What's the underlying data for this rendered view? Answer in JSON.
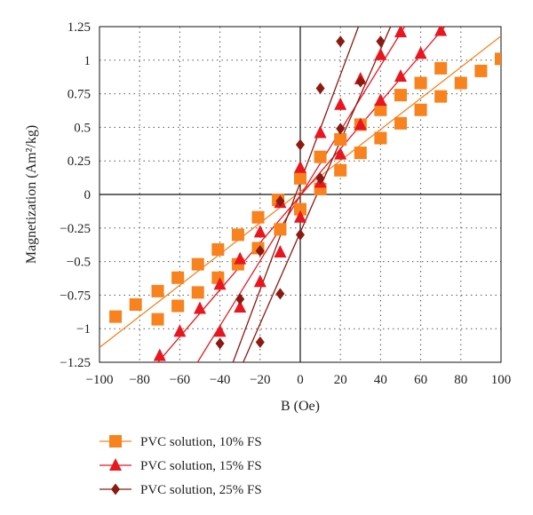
{
  "chart_data": {
    "type": "scatter",
    "xlabel": "B (Oe)",
    "ylabel": "Magnetization (Am²/kg)",
    "xlim": [
      -100,
      100
    ],
    "ylim": [
      -1.25,
      1.25
    ],
    "xticks": [
      -100,
      -80,
      -60,
      -40,
      -20,
      0,
      20,
      40,
      60,
      80,
      100
    ],
    "yticks": [
      -1.25,
      -1,
      -0.75,
      -0.5,
      -0.25,
      0,
      0.25,
      0.5,
      0.75,
      1,
      1.25
    ],
    "xtick_labels": [
      "−100",
      "−80",
      "−60",
      "−40",
      "−20",
      "0",
      "20",
      "40",
      "60",
      "80",
      "100"
    ],
    "ytick_labels": [
      "−1.25",
      "−1",
      "−0.75",
      "−0.5",
      "−0.25",
      "0",
      "0.25",
      "0.5",
      "0.75",
      "1",
      "1.25"
    ],
    "grid": "dotted",
    "legend_position": "bottom",
    "series": [
      {
        "name": "PVC solution, 10% FS",
        "color": "#F7821E",
        "marker": "square",
        "fit_lines": [
          {
            "x": [
              -100,
              100
            ],
            "y": [
              -1.14,
              1.18
            ]
          }
        ],
        "points": [
          {
            "x": -92,
            "y": -0.91
          },
          {
            "x": -82,
            "y": -0.82
          },
          {
            "x": -71,
            "y": -0.72
          },
          {
            "x": -61,
            "y": -0.62
          },
          {
            "x": -51,
            "y": -0.52
          },
          {
            "x": -41,
            "y": -0.41
          },
          {
            "x": -31,
            "y": -0.3
          },
          {
            "x": -21,
            "y": -0.17
          },
          {
            "x": -11,
            "y": -0.04
          },
          {
            "x": 0,
            "y": 0.12
          },
          {
            "x": 10,
            "y": 0.28
          },
          {
            "x": 20,
            "y": 0.41
          },
          {
            "x": 30,
            "y": 0.52
          },
          {
            "x": 40,
            "y": 0.63
          },
          {
            "x": 50,
            "y": 0.74
          },
          {
            "x": 60,
            "y": 0.83
          },
          {
            "x": 70,
            "y": 0.94
          },
          {
            "x": 80,
            "y": 0.83
          },
          {
            "x": 90,
            "y": 0.92
          },
          {
            "x": 100,
            "y": 1.01
          },
          {
            "x": -71,
            "y": -0.93
          },
          {
            "x": -61,
            "y": -0.83
          },
          {
            "x": -51,
            "y": -0.73
          },
          {
            "x": -41,
            "y": -0.62
          },
          {
            "x": -31,
            "y": -0.52
          },
          {
            "x": -21,
            "y": -0.4
          },
          {
            "x": -10,
            "y": -0.26
          },
          {
            "x": 0,
            "y": -0.11
          },
          {
            "x": 10,
            "y": 0.04
          },
          {
            "x": 20,
            "y": 0.18
          },
          {
            "x": 30,
            "y": 0.31
          },
          {
            "x": 40,
            "y": 0.42
          },
          {
            "x": 50,
            "y": 0.53
          },
          {
            "x": 60,
            "y": 0.63
          },
          {
            "x": 70,
            "y": 0.73
          }
        ]
      },
      {
        "name": "PVC solution, 15% FS",
        "color": "#E8171F",
        "marker": "triangle",
        "fit_lines": [
          {
            "x": [
              -72,
              72
            ],
            "y": [
              -1.27,
              1.25
            ]
          },
          {
            "x": [
              -52,
              52
            ],
            "y": [
              -1.27,
              1.25
            ]
          }
        ],
        "points": [
          {
            "x": -70,
            "y": -1.2
          },
          {
            "x": -60,
            "y": -1.02
          },
          {
            "x": -50,
            "y": -0.85
          },
          {
            "x": -40,
            "y": -0.67
          },
          {
            "x": -30,
            "y": -0.48
          },
          {
            "x": -20,
            "y": -0.28
          },
          {
            "x": -10,
            "y": -0.06
          },
          {
            "x": 0,
            "y": 0.2
          },
          {
            "x": 10,
            "y": 0.46
          },
          {
            "x": 20,
            "y": 0.67
          },
          {
            "x": 30,
            "y": 0.86
          },
          {
            "x": 40,
            "y": 1.04
          },
          {
            "x": 50,
            "y": 1.21
          },
          {
            "x": 60,
            "y": 1.05
          },
          {
            "x": 70,
            "y": 1.22
          },
          {
            "x": -40,
            "y": -1.02
          },
          {
            "x": -30,
            "y": -0.84
          },
          {
            "x": -20,
            "y": -0.65
          },
          {
            "x": -10,
            "y": -0.43
          },
          {
            "x": 0,
            "y": -0.17
          },
          {
            "x": 10,
            "y": 0.09
          },
          {
            "x": 20,
            "y": 0.3
          },
          {
            "x": 30,
            "y": 0.52
          },
          {
            "x": 40,
            "y": 0.7
          },
          {
            "x": 50,
            "y": 0.88
          }
        ]
      },
      {
        "name": "PVC solution, 25% FS",
        "color": "#8B1A10",
        "marker": "diamond",
        "fit_lines": [
          {
            "x": [
              -34,
              29
            ],
            "y": [
              -1.27,
              1.25
            ]
          },
          {
            "x": [
              -29,
              45
            ],
            "y": [
              -1.27,
              1.25
            ]
          }
        ],
        "points": [
          {
            "x": -30,
            "y": -0.78
          },
          {
            "x": -20,
            "y": -0.42
          },
          {
            "x": -10,
            "y": -0.05
          },
          {
            "x": 0,
            "y": 0.37
          },
          {
            "x": 10,
            "y": 0.79
          },
          {
            "x": 20,
            "y": 1.14
          },
          {
            "x": -40,
            "y": -1.11
          },
          {
            "x": -20,
            "y": -1.1
          },
          {
            "x": -10,
            "y": -0.74
          },
          {
            "x": 0,
            "y": -0.3
          },
          {
            "x": 10,
            "y": 0.12
          },
          {
            "x": 20,
            "y": 0.49
          },
          {
            "x": 30,
            "y": 0.84
          },
          {
            "x": 40,
            "y": 1.14
          }
        ]
      }
    ]
  }
}
